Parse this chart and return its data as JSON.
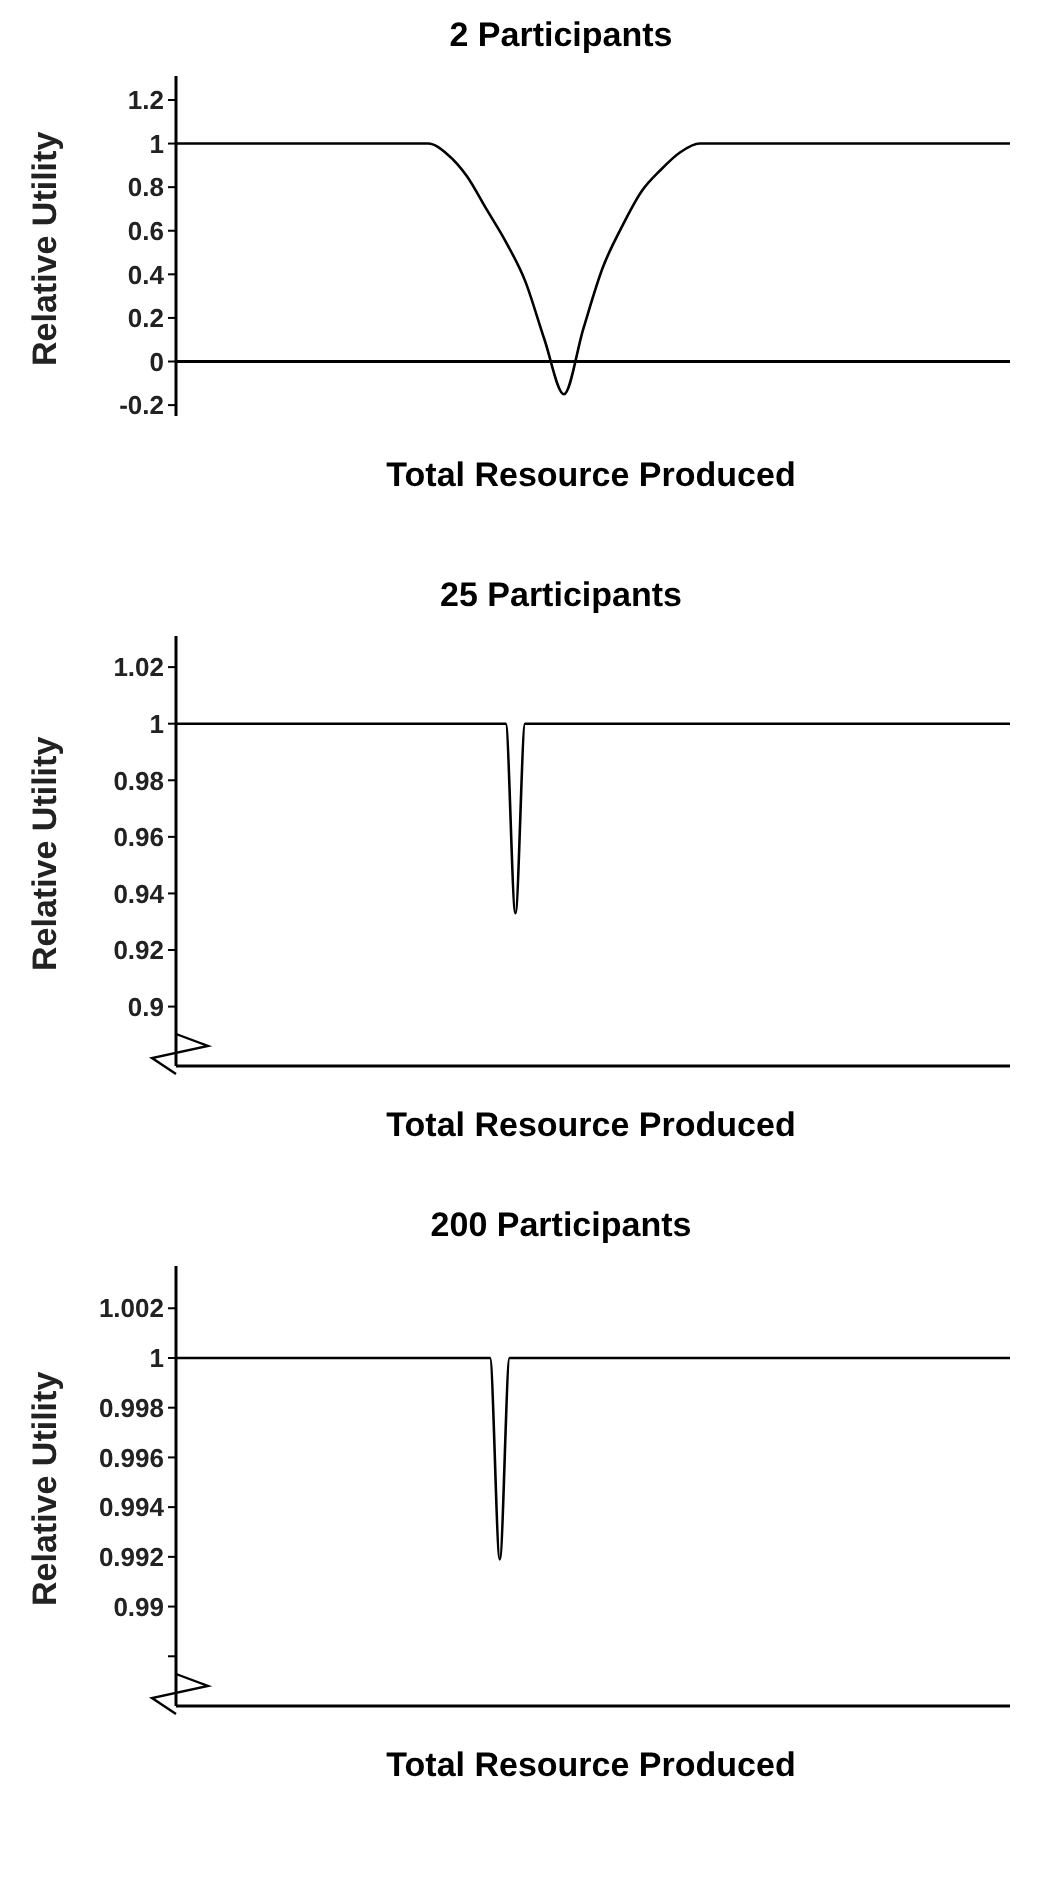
{
  "chart_data": [
    {
      "type": "line",
      "title": "2 Participants",
      "xlabel": "Total Resource Produced",
      "ylabel": "Relative Utility",
      "tick_labels": "y",
      "grid": false,
      "legend": false,
      "marker": "none",
      "categories": [
        null,
        null,
        null,
        null,
        null,
        null,
        null,
        null,
        null,
        null,
        null,
        null,
        null,
        null,
        null,
        null,
        null,
        null,
        null,
        null,
        null,
        null,
        null,
        null,
        null,
        null,
        null,
        null,
        null,
        null,
        null,
        null,
        null,
        null,
        null,
        null,
        null,
        null,
        null,
        null,
        null,
        null,
        null,
        null
      ],
      "series": [
        {
          "color": "#000000",
          "values": [
            1,
            1,
            1,
            1,
            1,
            1,
            1,
            1,
            1,
            1,
            1,
            1,
            1,
            1,
            0.95,
            0.85,
            0.7,
            0.55,
            0.37,
            0.1,
            -0.15,
            0.15,
            0.43,
            0.62,
            0.78,
            0.88,
            0.96,
            1,
            1,
            1,
            1,
            1,
            1,
            1,
            1,
            1,
            1,
            1,
            1,
            1,
            1,
            1,
            1,
            1
          ]
        }
      ],
      "ylim": [
        -0.25,
        1.31
      ],
      "yticks": [
        -0.2,
        0,
        0.2,
        0.4,
        0.6,
        0.8,
        1,
        1.2
      ],
      "ref_lines": [
        {
          "axis": "y",
          "value": 0
        }
      ]
    },
    {
      "type": "line",
      "title": "25 Participants",
      "xlabel": "Total Resource Produced",
      "ylabel": "Relative Utility",
      "tick_labels": "y",
      "grid": false,
      "legend": false,
      "marker": "none",
      "categories": [
        null,
        null,
        null,
        null,
        null,
        null,
        null,
        null,
        null,
        null,
        null,
        null,
        null,
        null,
        null,
        null,
        null,
        null,
        null,
        null,
        null,
        null,
        null,
        null,
        null,
        null,
        null,
        null,
        null,
        null,
        null,
        null,
        null,
        null,
        null,
        null,
        null,
        null,
        null,
        null,
        null,
        null,
        null,
        null,
        null,
        null,
        null,
        null,
        null,
        null,
        null,
        null,
        null,
        null,
        null,
        null,
        null,
        null,
        null,
        null,
        null,
        null,
        null,
        null,
        null,
        null,
        null,
        null,
        null,
        null,
        null,
        null,
        null,
        null,
        null,
        null,
        null,
        null,
        null,
        null,
        null,
        null,
        null,
        null,
        null,
        null,
        null
      ],
      "series": [
        {
          "color": "#000000",
          "values": [
            1,
            1,
            1,
            1,
            1,
            1,
            1,
            1,
            1,
            1,
            1,
            1,
            1,
            1,
            1,
            1,
            1,
            1,
            1,
            1,
            1,
            1,
            1,
            1,
            1,
            1,
            1,
            1,
            1,
            1,
            1,
            1,
            1,
            1,
            1,
            0.933,
            1,
            1,
            1,
            1,
            1,
            1,
            1,
            1,
            1,
            1,
            1,
            1,
            1,
            1,
            1,
            1,
            1,
            1,
            1,
            1,
            1,
            1,
            1,
            1,
            1,
            1,
            1,
            1,
            1,
            1,
            1,
            1,
            1,
            1,
            1,
            1,
            1,
            1,
            1,
            1,
            1,
            1,
            1,
            1,
            1,
            1,
            1,
            1,
            1,
            1,
            1
          ]
        }
      ],
      "ylim": [
        0.879,
        1.031
      ],
      "yticks": [
        0.9,
        0.92,
        0.94,
        0.96,
        0.98,
        1,
        1.02
      ]
    },
    {
      "type": "line",
      "title": "200 Participants",
      "xlabel": "Total Resource Produced",
      "ylabel": "Relative Utility",
      "tick_labels": "y",
      "grid": false,
      "legend": false,
      "marker": "none",
      "categories": [
        null,
        null,
        null,
        null,
        null,
        null,
        null,
        null,
        null,
        null,
        null,
        null,
        null,
        null,
        null,
        null,
        null,
        null,
        null,
        null,
        null,
        null,
        null,
        null,
        null,
        null,
        null,
        null,
        null,
        null,
        null,
        null,
        null,
        null,
        null,
        null,
        null,
        null,
        null,
        null,
        null,
        null,
        null,
        null,
        null,
        null,
        null,
        null,
        null,
        null,
        null,
        null,
        null,
        null,
        null,
        null,
        null,
        null,
        null,
        null,
        null,
        null,
        null,
        null,
        null,
        null,
        null,
        null,
        null,
        null,
        null,
        null,
        null,
        null,
        null,
        null,
        null,
        null,
        null,
        null,
        null,
        null,
        null,
        null,
        null,
        null
      ],
      "series": [
        {
          "color": "#000000",
          "values": [
            1,
            1,
            1,
            1,
            1,
            1,
            1,
            1,
            1,
            1,
            1,
            1,
            1,
            1,
            1,
            1,
            1,
            1,
            1,
            1,
            1,
            1,
            1,
            1,
            1,
            1,
            1,
            1,
            1,
            1,
            1,
            1,
            1,
            0.9919,
            1,
            1,
            1,
            1,
            1,
            1,
            1,
            1,
            1,
            1,
            1,
            1,
            1,
            1,
            1,
            1,
            1,
            1,
            1,
            1,
            1,
            1,
            1,
            1,
            1,
            1,
            1,
            1,
            1,
            1,
            1,
            1,
            1,
            1,
            1,
            1,
            1,
            1,
            1,
            1,
            1,
            1,
            1,
            1,
            1,
            1,
            1,
            1,
            1,
            1,
            1,
            1
          ]
        }
      ],
      "ylim": [
        0.986,
        1.0037
      ],
      "yticks": [
        {
          "value": 0.988,
          "label": null
        },
        0.99,
        0.992,
        0.994,
        0.996,
        0.998,
        1,
        1.002
      ]
    }
  ]
}
